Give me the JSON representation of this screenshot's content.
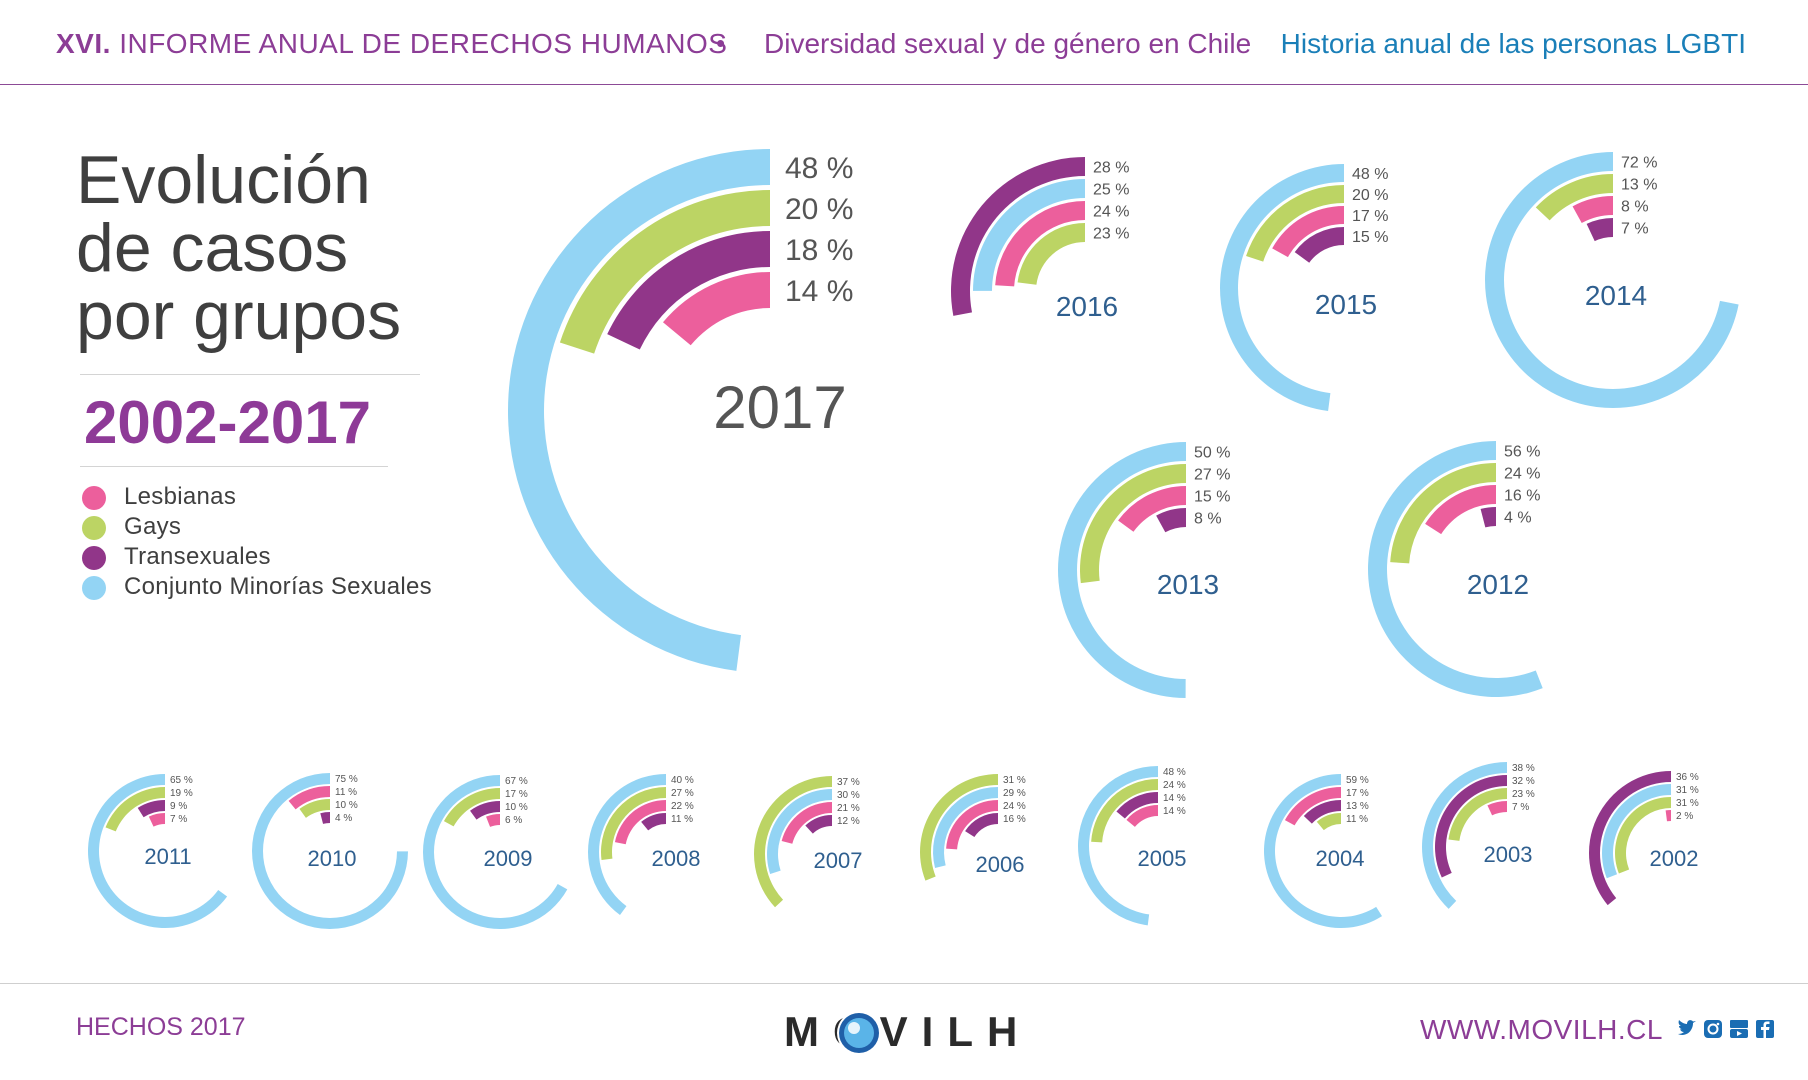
{
  "header": {
    "roman": "XVI.",
    "report": "INFORME ANUAL DE DERECHOS HUMANOS",
    "separator": "•",
    "subtitle": "Diversidad sexual y de género en Chile",
    "right": "Historia anual de las personas LGBTI"
  },
  "title": {
    "line1": "Evolución",
    "line2": "de casos",
    "line3": "por grupos",
    "period": "2002-2017"
  },
  "legend": [
    {
      "label": "Lesbianas",
      "color": "#ec5f9c"
    },
    {
      "label": "Gays",
      "color": "#bcd464"
    },
    {
      "label": "Transexuales",
      "color": "#913689"
    },
    {
      "label": "Conjunto Minorías Sexuales",
      "color": "#93d4f4"
    }
  ],
  "chart_data": [
    {
      "type": "radial-bar",
      "year": "2017",
      "series": [
        {
          "name": "Conjunto Minorías Sexuales",
          "value": 48
        },
        {
          "name": "Gays",
          "value": 20
        },
        {
          "name": "Transexuales",
          "value": 18
        },
        {
          "name": "Lesbianas",
          "value": 14
        }
      ],
      "labels": [
        "48 %",
        "20 %",
        "18 %",
        "14 %"
      ]
    },
    {
      "type": "radial-bar",
      "year": "2016",
      "series": [
        {
          "name": "Transexuales",
          "value": 28
        },
        {
          "name": "Conjunto Minorías Sexuales",
          "value": 25
        },
        {
          "name": "Lesbianas",
          "value": 24
        },
        {
          "name": "Gays",
          "value": 23
        }
      ],
      "labels": [
        "28 %",
        "25 %",
        "24 %",
        "23 %"
      ]
    },
    {
      "type": "radial-bar",
      "year": "2015",
      "series": [
        {
          "name": "Conjunto Minorías Sexuales",
          "value": 48
        },
        {
          "name": "Gays",
          "value": 20
        },
        {
          "name": "Lesbianas",
          "value": 17
        },
        {
          "name": "Transexuales",
          "value": 15
        }
      ],
      "labels": [
        "48 %",
        "20 %",
        "17 %",
        "15 %"
      ]
    },
    {
      "type": "radial-bar",
      "year": "2014",
      "series": [
        {
          "name": "Conjunto Minorías Sexuales",
          "value": 72
        },
        {
          "name": "Gays",
          "value": 13
        },
        {
          "name": "Lesbianas",
          "value": 8
        },
        {
          "name": "Transexuales",
          "value": 7
        }
      ],
      "labels": [
        "72 %",
        "13 %",
        "8 %",
        "7 %"
      ]
    },
    {
      "type": "radial-bar",
      "year": "2013",
      "series": [
        {
          "name": "Conjunto Minorías Sexuales",
          "value": 50
        },
        {
          "name": "Gays",
          "value": 27
        },
        {
          "name": "Lesbianas",
          "value": 15
        },
        {
          "name": "Transexuales",
          "value": 8
        }
      ],
      "labels": [
        "50 %",
        "27 %",
        "15 %",
        "8 %"
      ]
    },
    {
      "type": "radial-bar",
      "year": "2012",
      "series": [
        {
          "name": "Conjunto Minorías Sexuales",
          "value": 56
        },
        {
          "name": "Gays",
          "value": 24
        },
        {
          "name": "Lesbianas",
          "value": 16
        },
        {
          "name": "Transexuales",
          "value": 4
        }
      ],
      "labels": [
        "56 %",
        "24 %",
        "16 %",
        "4 %"
      ]
    },
    {
      "type": "radial-bar",
      "year": "2011",
      "series": [
        {
          "name": "Conjunto Minorías Sexuales",
          "value": 65
        },
        {
          "name": "Gays",
          "value": 19
        },
        {
          "name": "Transexuales",
          "value": 9
        },
        {
          "name": "Lesbianas",
          "value": 7
        }
      ],
      "labels": [
        "65 %",
        "19 %",
        "9 %",
        "7 %"
      ]
    },
    {
      "type": "radial-bar",
      "year": "2010",
      "series": [
        {
          "name": "Conjunto Minorías Sexuales",
          "value": 75
        },
        {
          "name": "Lesbianas",
          "value": 11
        },
        {
          "name": "Gays",
          "value": 10
        },
        {
          "name": "Transexuales",
          "value": 4
        }
      ],
      "labels": [
        "75 %",
        "11 %",
        "10 %",
        "4 %"
      ]
    },
    {
      "type": "radial-bar",
      "year": "2009",
      "series": [
        {
          "name": "Conjunto Minorías Sexuales",
          "value": 67
        },
        {
          "name": "Gays",
          "value": 17
        },
        {
          "name": "Transexuales",
          "value": 10
        },
        {
          "name": "Lesbianas",
          "value": 6
        }
      ],
      "labels": [
        "67 %",
        "17 %",
        "10 %",
        "6 %"
      ]
    },
    {
      "type": "radial-bar",
      "year": "2008",
      "series": [
        {
          "name": "Conjunto Minorías Sexuales",
          "value": 40
        },
        {
          "name": "Gays",
          "value": 27
        },
        {
          "name": "Lesbianas",
          "value": 22
        },
        {
          "name": "Transexuales",
          "value": 11
        }
      ],
      "labels": [
        "40 %",
        "27 %",
        "22 %",
        "11 %"
      ]
    },
    {
      "type": "radial-bar",
      "year": "2007",
      "series": [
        {
          "name": "Gays",
          "value": 37
        },
        {
          "name": "Conjunto Minorías Sexuales",
          "value": 30
        },
        {
          "name": "Lesbianas",
          "value": 21
        },
        {
          "name": "Transexuales",
          "value": 12
        }
      ],
      "labels": [
        "37 %",
        "30 %",
        "21 %",
        "12 %"
      ]
    },
    {
      "type": "radial-bar",
      "year": "2006",
      "series": [
        {
          "name": "Gays",
          "value": 31
        },
        {
          "name": "Conjunto Minorías Sexuales",
          "value": 29
        },
        {
          "name": "Lesbianas",
          "value": 24
        },
        {
          "name": "Transexuales",
          "value": 16
        }
      ],
      "labels": [
        "31 %",
        "29 %",
        "24 %",
        "16 %"
      ]
    },
    {
      "type": "radial-bar",
      "year": "2005",
      "series": [
        {
          "name": "Conjunto Minorías Sexuales",
          "value": 48
        },
        {
          "name": "Gays",
          "value": 24
        },
        {
          "name": "Transexuales",
          "value": 14
        },
        {
          "name": "Lesbianas",
          "value": 14
        }
      ],
      "labels": [
        "48 %",
        "24 %",
        "14 %",
        "14 %"
      ]
    },
    {
      "type": "radial-bar",
      "year": "2004",
      "series": [
        {
          "name": "Conjunto Minorías Sexuales",
          "value": 59
        },
        {
          "name": "Lesbianas",
          "value": 17
        },
        {
          "name": "Transexuales",
          "value": 13
        },
        {
          "name": "Gays",
          "value": 11
        }
      ],
      "labels": [
        "59 %",
        "17 %",
        "13 %",
        "11 %"
      ]
    },
    {
      "type": "radial-bar",
      "year": "2003",
      "series": [
        {
          "name": "Conjunto Minorías Sexuales",
          "value": 38
        },
        {
          "name": "Transexuales",
          "value": 32
        },
        {
          "name": "Gays",
          "value": 23
        },
        {
          "name": "Lesbianas",
          "value": 7
        }
      ],
      "labels": [
        "38 %",
        "32 %",
        "23 %",
        "7 %"
      ]
    },
    {
      "type": "radial-bar",
      "year": "2002",
      "series": [
        {
          "name": "Transexuales",
          "value": 36
        },
        {
          "name": "Conjunto Minorías Sexuales",
          "value": 31
        },
        {
          "name": "Gays",
          "value": 31
        },
        {
          "name": "Lesbianas",
          "value": 2
        }
      ],
      "labels": [
        "36 %",
        "31 %",
        "31 %",
        "2 %"
      ]
    }
  ],
  "footer": {
    "left": "HECHOS 2017",
    "logo": "MOVILH",
    "url": "WWW.MOVILH.CL",
    "social_icons": [
      "twitter-icon",
      "instagram-icon",
      "youtube-icon",
      "facebook-icon"
    ]
  }
}
